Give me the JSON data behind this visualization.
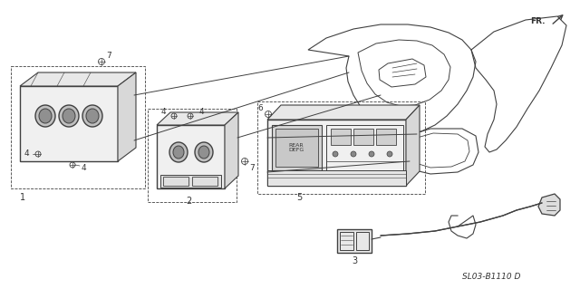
{
  "background_color": "#ffffff",
  "diagram_label": "SL03-B1110 D",
  "fr_label": "FR.",
  "line_color": "#404040",
  "text_color": "#333333",
  "fig_width": 6.4,
  "fig_height": 3.19,
  "dpi": 100
}
